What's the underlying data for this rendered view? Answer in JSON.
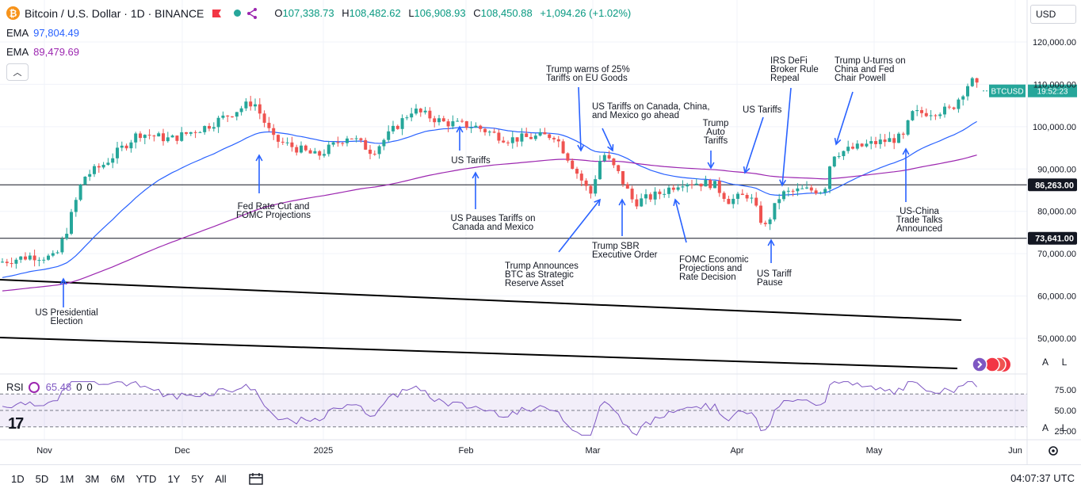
{
  "header": {
    "symbol": "Bitcoin / U.S. Dollar · 1D · BINANCE",
    "open_label": "O",
    "open": "107,338.73",
    "high_label": "H",
    "high": "108,482.62",
    "low_label": "L",
    "low": "106,908.93",
    "close_label": "C",
    "close": "108,450.88",
    "change": "+1,094.26 (+1.02%)"
  },
  "ema": [
    {
      "label": "EMA",
      "value": "97,804.49",
      "color": "#2962ff"
    },
    {
      "label": "EMA",
      "value": "89,479.69",
      "color": "#9c27b0"
    }
  ],
  "rsi": {
    "label": "RSI",
    "value": "65.48",
    "p1": "0",
    "p2": "0"
  },
  "currency": "USD",
  "toolbar": {
    "ranges": [
      "1D",
      "5D",
      "1M",
      "3M",
      "6M",
      "YTD",
      "1Y",
      "5Y",
      "All"
    ],
    "clock": "04:07:37 UTC"
  },
  "scale_buttons": {
    "auto": "A",
    "log": "L"
  },
  "chart_data": {
    "type": "candlestick",
    "price_axis_ticks": [
      120000,
      110000,
      100000,
      90000,
      80000,
      70000,
      60000,
      50000
    ],
    "price_axis_labels": [
      "120,000.00",
      "110,000.00",
      "100,000.00",
      "90,000.00",
      "80,000.00",
      "70,000.00",
      "60,000.00",
      "50,000.00"
    ],
    "rsi_axis_labels": [
      "75.00",
      "50.00",
      "25.00"
    ],
    "x_ticks": [
      "Nov",
      "Dec",
      "2025",
      "Feb",
      "Mar",
      "Apr",
      "May",
      "Jun"
    ],
    "last_price_label": "BTCUSD",
    "last_price": 108450.88,
    "last_countdown": "19:52:23",
    "last_price_color": "#26a69a",
    "horizontal_levels": [
      {
        "value": 86263,
        "label": "86,263.00"
      },
      {
        "value": 73641,
        "label": "73,641.00"
      }
    ],
    "annotations": [
      {
        "text": [
          "US Presidential",
          "Election"
        ],
        "dir": "up"
      },
      {
        "text": [
          "Fed Rate Cut and",
          "FOMC Projections"
        ],
        "dir": "up"
      },
      {
        "text": [
          "US Tariffs"
        ],
        "dir": "up"
      },
      {
        "text": [
          "US Pauses Tariffs on",
          "Canada and Mexico"
        ],
        "dir": "up"
      },
      {
        "text": [
          "Trump Announces",
          "BTC as Strategic",
          "Reserve Asset"
        ],
        "dir": "up"
      },
      {
        "text": [
          "Trump warns of 25%",
          "Tariffs on EU Goods"
        ],
        "dir": "down"
      },
      {
        "text": [
          "US Tariffs on Canada, China,",
          "and Mexico go ahead"
        ],
        "dir": "down"
      },
      {
        "text": [
          "Trump SBR",
          "Executive Order"
        ],
        "dir": "up"
      },
      {
        "text": [
          "Trump",
          "Auto",
          "Tariffs"
        ],
        "dir": "down"
      },
      {
        "text": [
          "FOMC Economic",
          "Projections and",
          "Rate Decision"
        ],
        "dir": "up"
      },
      {
        "text": [
          "US Tariffs"
        ],
        "dir": "down"
      },
      {
        "text": [
          "IRS DeFi",
          "Broker Rule",
          "Repeal"
        ],
        "dir": "down"
      },
      {
        "text": [
          "US Tariff",
          "Pause"
        ],
        "dir": "up"
      },
      {
        "text": [
          "Trump U-turns on",
          "China and Fed",
          "Chair Powell"
        ],
        "dir": "down"
      },
      {
        "text": [
          "US-China",
          "Trade Talks",
          "Announced"
        ],
        "dir": "up"
      }
    ],
    "colors": {
      "up": "#26a69a",
      "down": "#ef5350",
      "ema_fast": "#2962ff",
      "ema_slow": "#9c27b0",
      "rsi": "#7e57c2",
      "annotation": "#2962ff"
    }
  }
}
